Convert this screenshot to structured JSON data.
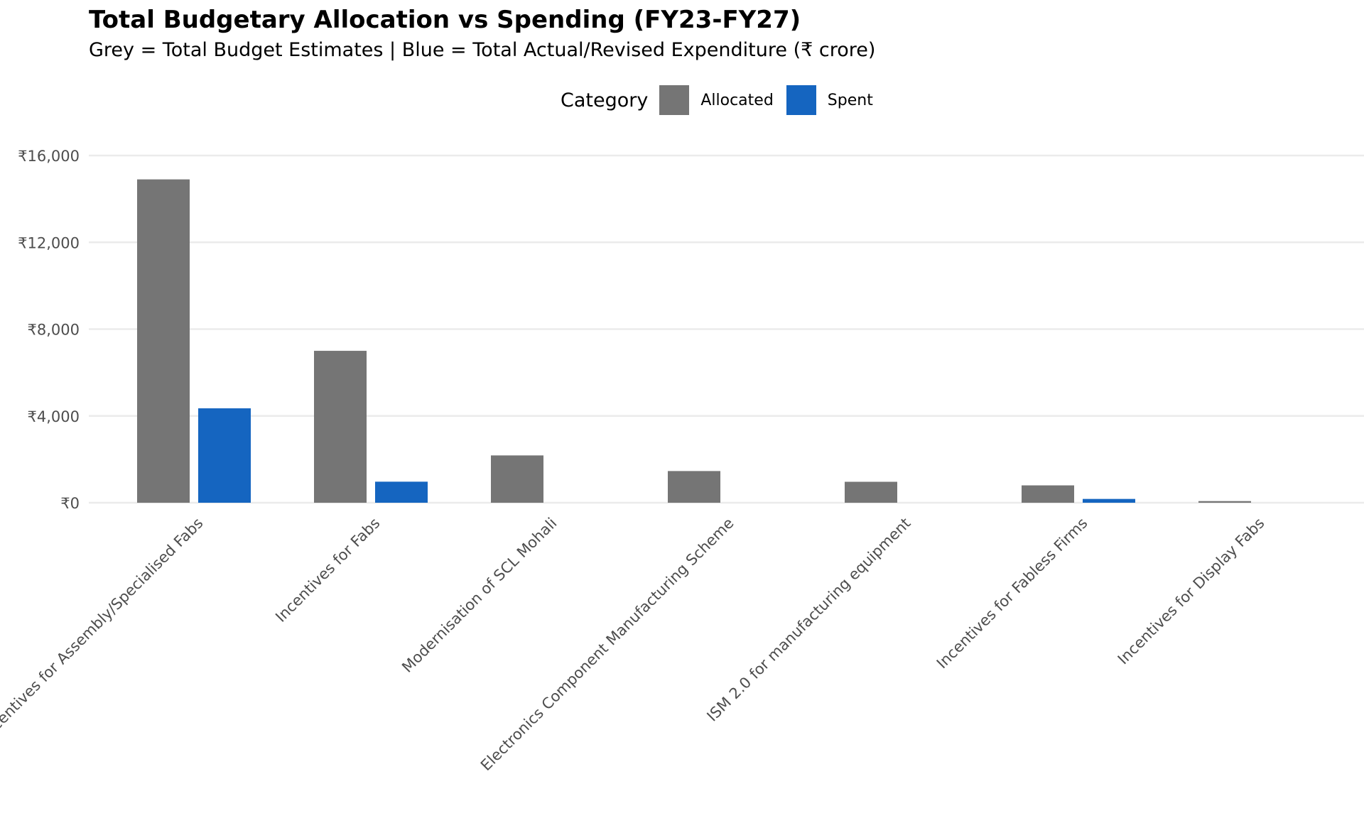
{
  "chart_data": {
    "type": "bar",
    "title": "Total Budgetary Allocation vs Spending (FY23-FY27)",
    "subtitle": "Grey = Total Budget Estimates | Blue = Total Actual/Revised Expenditure (₹ crore)",
    "xlabel": "",
    "ylabel": "",
    "ylim": [
      0,
      16000
    ],
    "yticks": [
      0,
      4000,
      8000,
      12000,
      16000
    ],
    "ytick_labels": [
      "₹0",
      "₹4,000",
      "₹8,000",
      "₹12,000",
      "₹16,000"
    ],
    "grid": "horizontal",
    "legend": {
      "title": "Category",
      "position": "top-center",
      "entries": [
        "Allocated",
        "Spent"
      ]
    },
    "categories": [
      "Incentives for Assembly/Specialised Fabs",
      "Incentives for Fabs",
      "Modernisation of SCL Mohali",
      "Electronics Component Manufacturing Scheme",
      "ISM 2.0 for manufacturing equipment",
      "Incentives for Fabless Firms",
      "Incentives for Display Fabs"
    ],
    "series": [
      {
        "name": "Allocated",
        "color": "#757575",
        "values": [
          14900,
          7000,
          2180,
          1460,
          965,
          800,
          75
        ]
      },
      {
        "name": "Spent",
        "color": "#1565C0",
        "values": [
          4350,
          970,
          0,
          0,
          0,
          175,
          0
        ]
      }
    ]
  }
}
